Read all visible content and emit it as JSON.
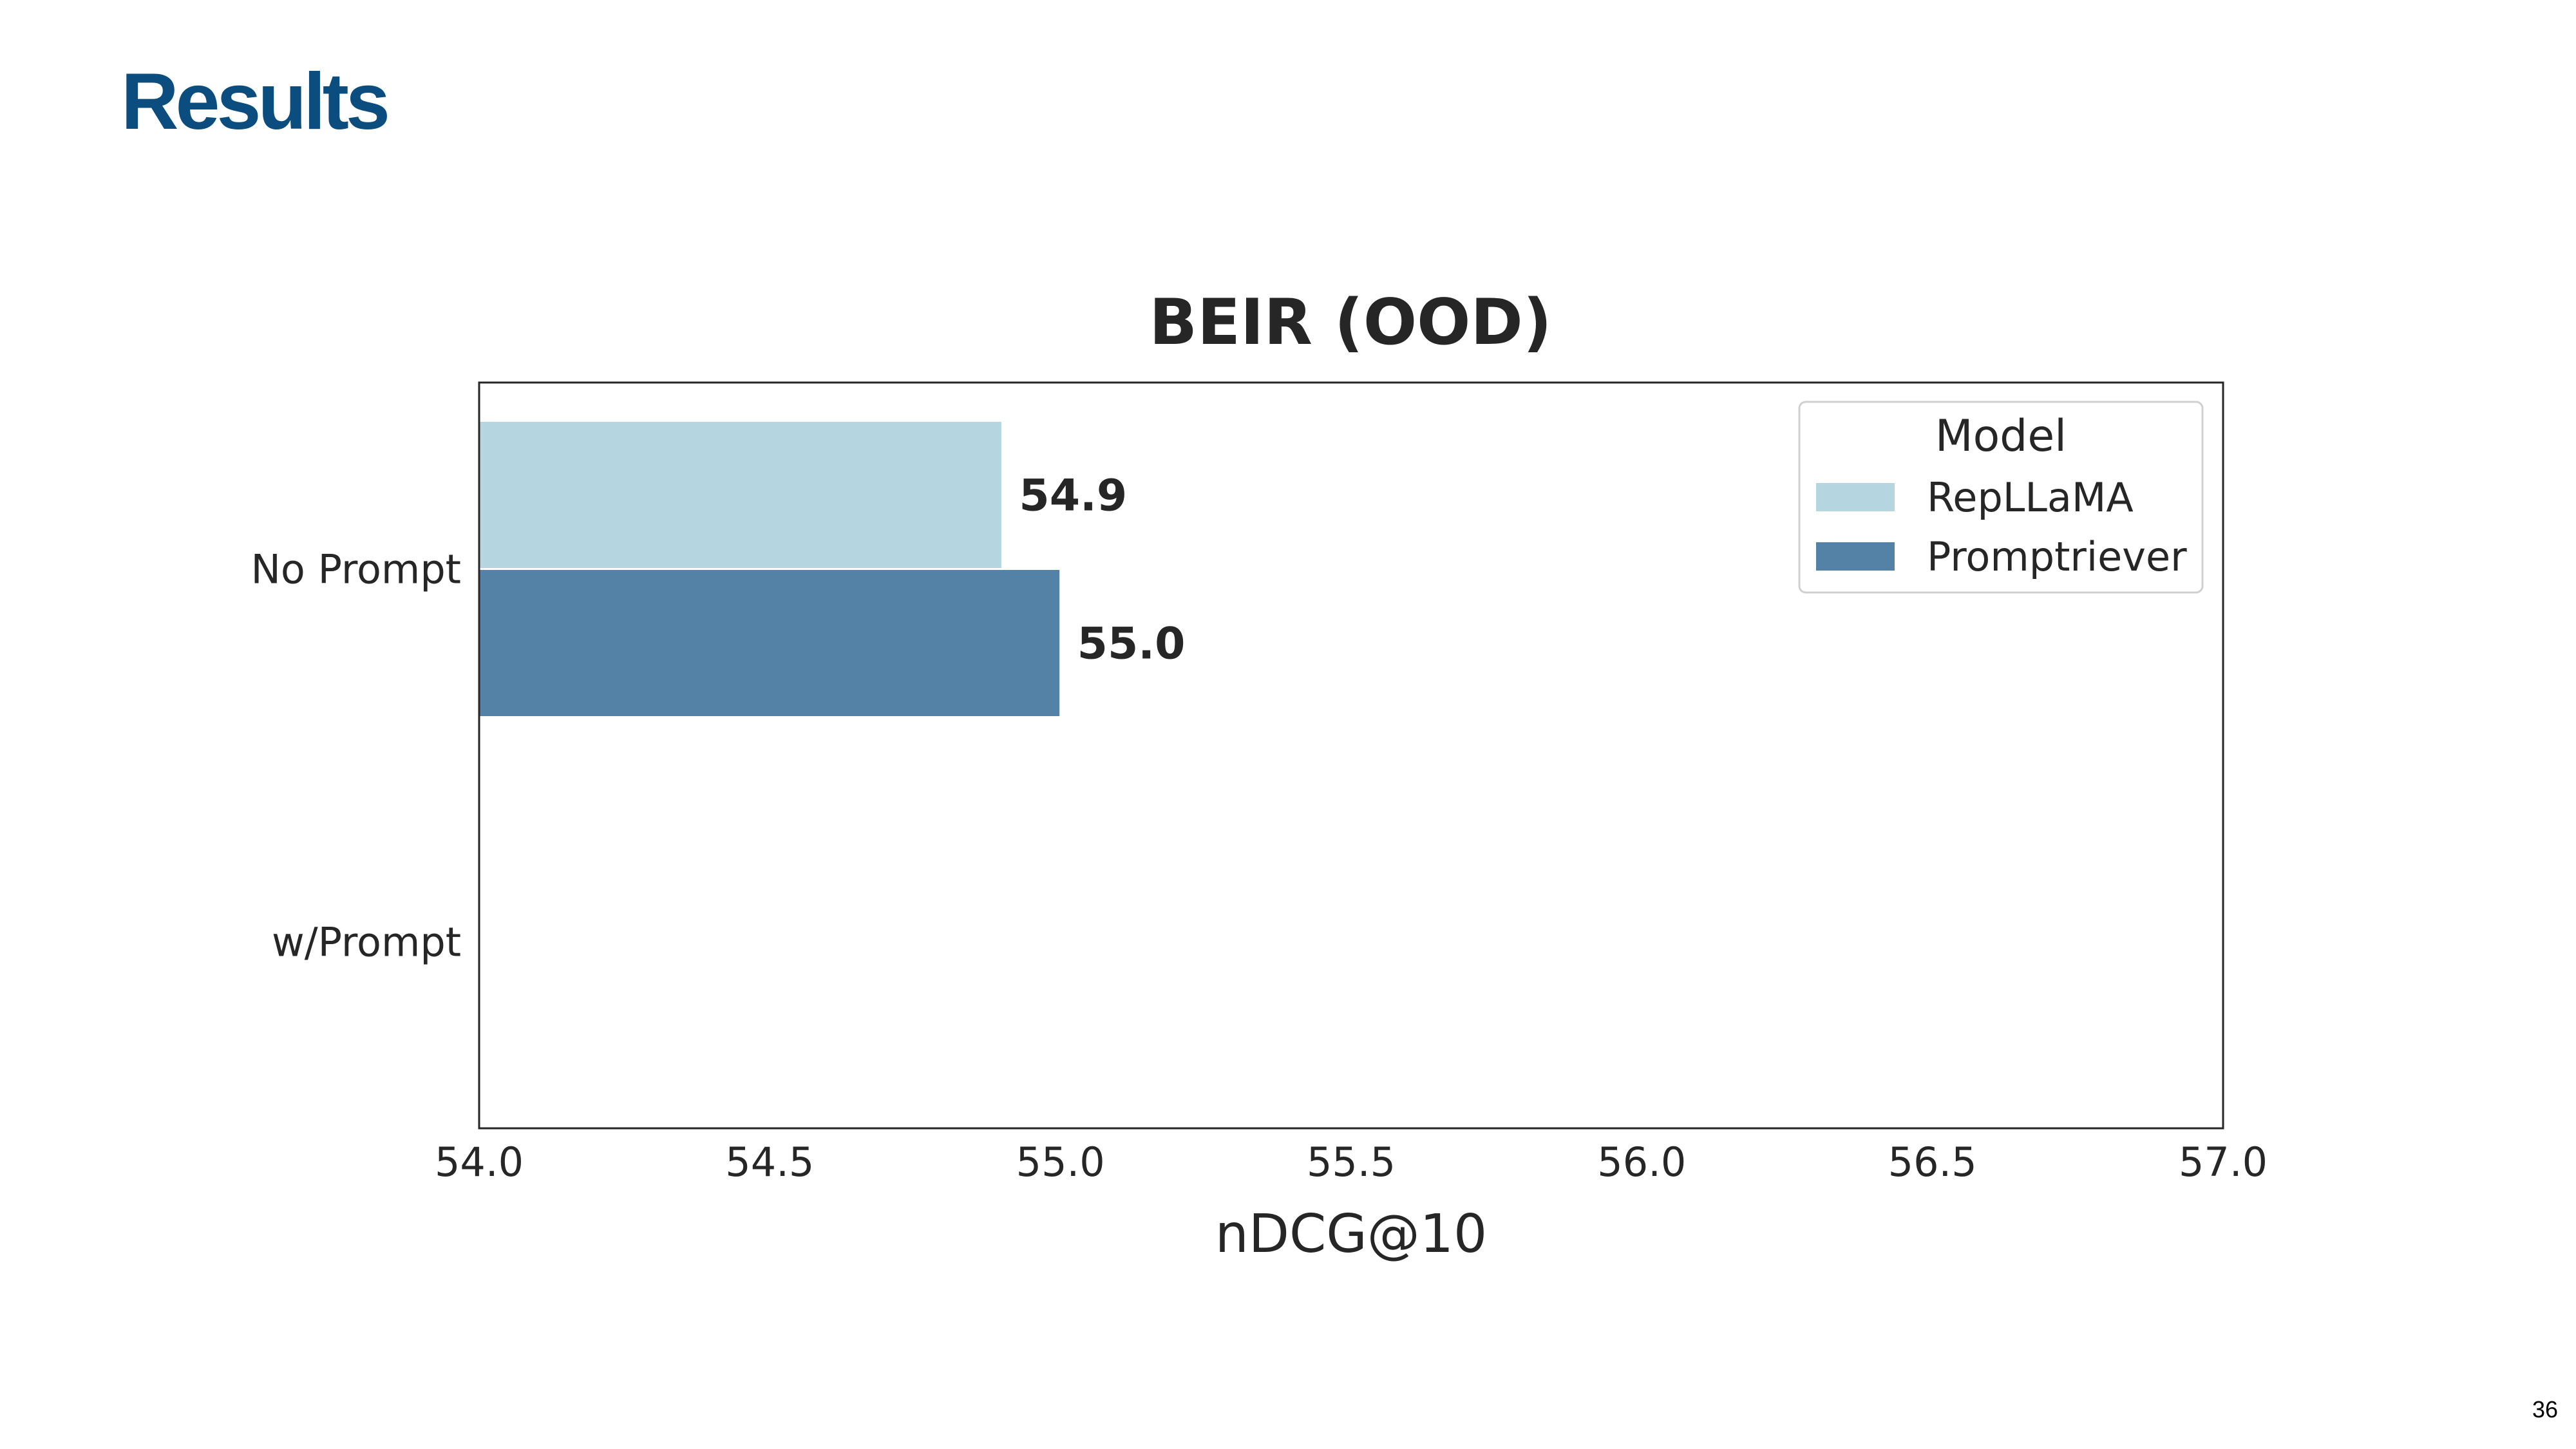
{
  "slide": {
    "title": "Results",
    "page_number": "36"
  },
  "colors": {
    "title": "#0b4d7e",
    "RepLLaMA": "#b5d5e0",
    "Promptriever": "#5482a6"
  },
  "chart_data": {
    "type": "bar",
    "orientation": "horizontal",
    "title": "BEIR (OOD)",
    "xlabel": "nDCG@10",
    "ylabel": "",
    "categories": [
      "No Prompt",
      "w/Prompt"
    ],
    "series": [
      {
        "name": "RepLLaMA",
        "values": [
          54.9,
          null
        ],
        "labels": [
          "54.9",
          ""
        ]
      },
      {
        "name": "Promptriever",
        "values": [
          55.0,
          null
        ],
        "labels": [
          "55.0",
          ""
        ]
      }
    ],
    "xlim": [
      54.0,
      57.0
    ],
    "xticks": [
      "54.0",
      "54.5",
      "55.0",
      "55.5",
      "56.0",
      "56.5",
      "57.0"
    ],
    "grid": false,
    "legend": {
      "title": "Model",
      "placement": "top-right"
    }
  }
}
